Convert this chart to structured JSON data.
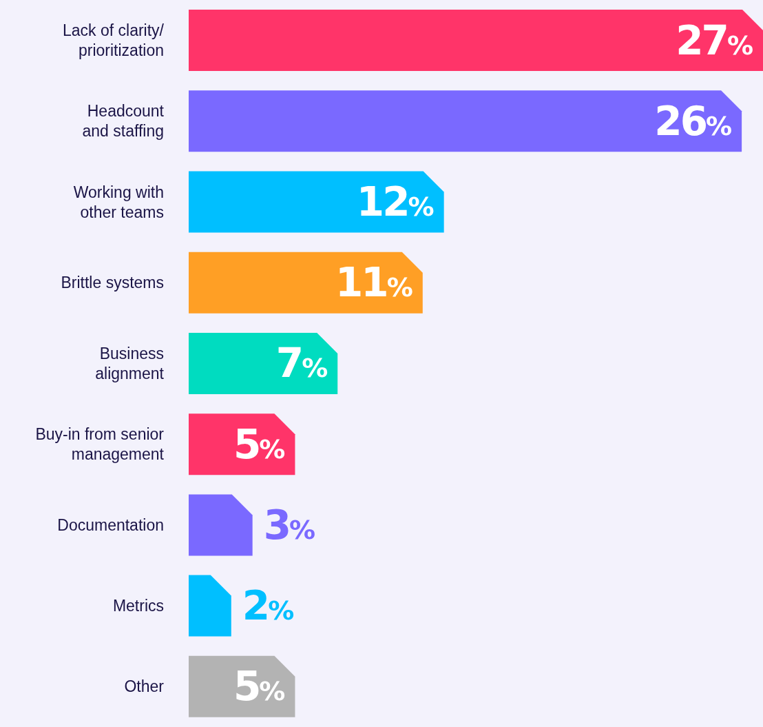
{
  "chart_data": {
    "type": "bar",
    "orientation": "horizontal",
    "categories": [
      "Lack of clarity/\nprioritization",
      "Headcount\nand staffing",
      "Working with\nother teams",
      "Brittle systems",
      "Business\nalignment",
      "Buy-in from senior\nmanagement",
      "Documentation",
      "Metrics",
      "Other"
    ],
    "values": [
      27,
      26,
      12,
      11,
      7,
      5,
      3,
      2,
      5
    ],
    "colors": [
      "#ff3469",
      "#7a69ff",
      "#00bfff",
      "#ff9f25",
      "#00dcc0",
      "#ff3469",
      "#7a69ff",
      "#00bfff",
      "#b3b3b3"
    ],
    "value_labels": [
      "27%",
      "26%",
      "12%",
      "11%",
      "7%",
      "5%",
      "3%",
      "2%",
      "5%"
    ]
  }
}
